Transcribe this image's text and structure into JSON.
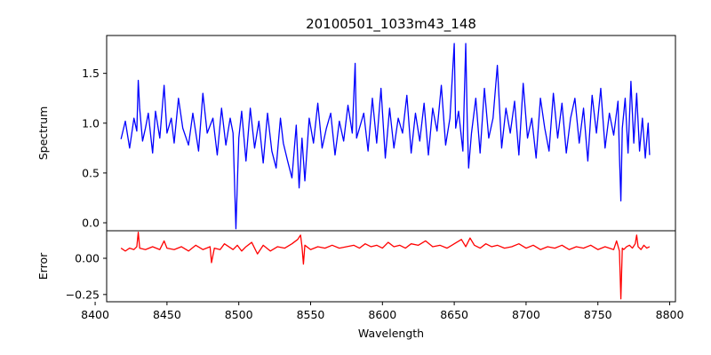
{
  "chart_data": {
    "type": "line",
    "title": "20100501_1033m43_148",
    "xlabel": "Wavelength",
    "xlim": [
      8408,
      8804
    ],
    "xticks": [
      8400,
      8450,
      8500,
      8550,
      8600,
      8650,
      8700,
      8750,
      8800
    ],
    "xtick_labels": [
      "8400",
      "8450",
      "8500",
      "8550",
      "8600",
      "8650",
      "8700",
      "8750",
      "8800"
    ],
    "panels": [
      {
        "ylabel": "Spectrum",
        "ylim": [
          -0.08,
          1.88
        ],
        "yticks": [
          0.0,
          0.5,
          1.0,
          1.5
        ],
        "ytick_labels": [
          "0.0",
          "0.5",
          "1.0",
          "1.5"
        ],
        "series": [
          {
            "color": "#0000ff",
            "x": [
              8418,
              8421,
              8424,
              8427,
              8429,
              8430,
              8431,
              8433,
              8435,
              8437,
              8440,
              8442,
              8445,
              8448,
              8450,
              8453,
              8455,
              8458,
              8461,
              8465,
              8468,
              8472,
              8475,
              8478,
              8482,
              8485,
              8488,
              8491,
              8494,
              8496,
              8498,
              8500,
              8502,
              8505,
              8508,
              8511,
              8514,
              8517,
              8520,
              8523,
              8526,
              8529,
              8531,
              8534,
              8537,
              8540,
              8542,
              8544,
              8546,
              8549,
              8552,
              8555,
              8558,
              8561,
              8564,
              8567,
              8570,
              8573,
              8576,
              8579,
              8581,
              8582,
              8584,
              8587,
              8590,
              8593,
              8596,
              8599,
              8602,
              8605,
              8608,
              8611,
              8614,
              8617,
              8620,
              8623,
              8626,
              8629,
              8632,
              8635,
              8638,
              8641,
              8644,
              8647,
              8650,
              8651,
              8653,
              8656,
              8658,
              8659,
              8660,
              8662,
              8665,
              8668,
              8671,
              8674,
              8677,
              8680,
              8683,
              8686,
              8689,
              8692,
              8695,
              8698,
              8701,
              8704,
              8707,
              8710,
              8713,
              8716,
              8719,
              8722,
              8725,
              8728,
              8731,
              8734,
              8737,
              8740,
              8743,
              8746,
              8749,
              8752,
              8755,
              8758,
              8761,
              8764,
              8765,
              8766,
              8767,
              8769,
              8771,
              8773,
              8775,
              8777,
              8779,
              8781,
              8783,
              8785,
              8786
            ],
            "y": [
              0.84,
              1.02,
              0.75,
              1.05,
              0.92,
              1.43,
              1.15,
              0.82,
              0.95,
              1.1,
              0.7,
              1.12,
              0.85,
              1.38,
              0.9,
              1.05,
              0.8,
              1.25,
              0.95,
              0.78,
              1.1,
              0.72,
              1.3,
              0.9,
              1.05,
              0.68,
              1.15,
              0.78,
              1.05,
              0.9,
              -0.06,
              0.85,
              1.12,
              0.62,
              1.15,
              0.75,
              1.02,
              0.6,
              1.1,
              0.72,
              0.55,
              1.05,
              0.8,
              0.62,
              0.45,
              0.98,
              0.35,
              0.85,
              0.42,
              1.05,
              0.8,
              1.2,
              0.75,
              0.95,
              1.1,
              0.68,
              1.02,
              0.82,
              1.18,
              0.9,
              1.6,
              0.85,
              0.95,
              1.1,
              0.72,
              1.25,
              0.8,
              1.35,
              0.65,
              1.15,
              0.75,
              1.05,
              0.9,
              1.28,
              0.7,
              1.1,
              0.82,
              1.2,
              0.68,
              1.15,
              0.92,
              1.38,
              0.78,
              1.05,
              1.8,
              0.95,
              1.12,
              0.72,
              1.8,
              1.05,
              0.55,
              0.9,
              1.25,
              0.7,
              1.35,
              0.85,
              1.05,
              1.58,
              0.75,
              1.15,
              0.9,
              1.22,
              0.68,
              1.4,
              0.85,
              1.05,
              0.65,
              1.25,
              0.95,
              0.72,
              1.3,
              0.85,
              1.2,
              0.7,
              1.05,
              1.25,
              0.8,
              1.15,
              0.62,
              1.28,
              0.9,
              1.35,
              0.75,
              1.1,
              0.88,
              1.22,
              0.68,
              0.22,
              0.95,
              1.25,
              0.7,
              1.42,
              0.8,
              1.3,
              0.72,
              1.05,
              0.65,
              1.0,
              0.68
            ]
          }
        ]
      },
      {
        "ylabel": "Error",
        "ylim": [
          -0.3,
          0.19
        ],
        "yticks": [
          0.0,
          -0.25
        ],
        "ytick_labels": [
          "0.00",
          "−0.25"
        ],
        "series": [
          {
            "color": "#ff0000",
            "x": [
              8418,
              8421,
              8424,
              8427,
              8429,
              8430,
              8431,
              8435,
              8440,
              8445,
              8448,
              8450,
              8455,
              8460,
              8465,
              8470,
              8475,
              8480,
              8481,
              8483,
              8487,
              8490,
              8493,
              8496,
              8499,
              8502,
              8505,
              8509,
              8513,
              8517,
              8522,
              8527,
              8532,
              8537,
              8541,
              8543,
              8544,
              8545,
              8546,
              8550,
              8555,
              8560,
              8565,
              8570,
              8575,
              8580,
              8584,
              8588,
              8592,
              8596,
              8600,
              8604,
              8608,
              8612,
              8616,
              8620,
              8625,
              8630,
              8635,
              8640,
              8645,
              8650,
              8655,
              8658,
              8661,
              8664,
              8668,
              8672,
              8676,
              8680,
              8685,
              8690,
              8695,
              8700,
              8705,
              8710,
              8715,
              8720,
              8725,
              8730,
              8735,
              8740,
              8745,
              8750,
              8755,
              8758,
              8761,
              8763,
              8765,
              8766,
              8767,
              8768,
              8770,
              8772,
              8774,
              8776,
              8777,
              8778,
              8780,
              8782,
              8784,
              8786
            ],
            "y": [
              0.07,
              0.05,
              0.07,
              0.06,
              0.08,
              0.18,
              0.07,
              0.06,
              0.08,
              0.06,
              0.12,
              0.07,
              0.06,
              0.08,
              0.05,
              0.09,
              0.06,
              0.08,
              -0.03,
              0.07,
              0.06,
              0.1,
              0.08,
              0.06,
              0.09,
              0.05,
              0.08,
              0.11,
              0.03,
              0.09,
              0.05,
              0.08,
              0.07,
              0.1,
              0.13,
              0.16,
              0.08,
              -0.04,
              0.09,
              0.06,
              0.08,
              0.07,
              0.09,
              0.07,
              0.08,
              0.09,
              0.07,
              0.1,
              0.08,
              0.09,
              0.07,
              0.11,
              0.08,
              0.09,
              0.07,
              0.1,
              0.09,
              0.12,
              0.08,
              0.09,
              0.07,
              0.1,
              0.13,
              0.08,
              0.14,
              0.09,
              0.07,
              0.1,
              0.08,
              0.09,
              0.07,
              0.08,
              0.1,
              0.07,
              0.09,
              0.06,
              0.08,
              0.07,
              0.09,
              0.06,
              0.08,
              0.07,
              0.09,
              0.06,
              0.08,
              0.07,
              0.06,
              0.12,
              0.05,
              -0.28,
              0.07,
              0.06,
              0.08,
              0.09,
              0.07,
              0.1,
              0.16,
              0.08,
              0.06,
              0.09,
              0.07,
              0.08
            ]
          }
        ]
      }
    ]
  }
}
